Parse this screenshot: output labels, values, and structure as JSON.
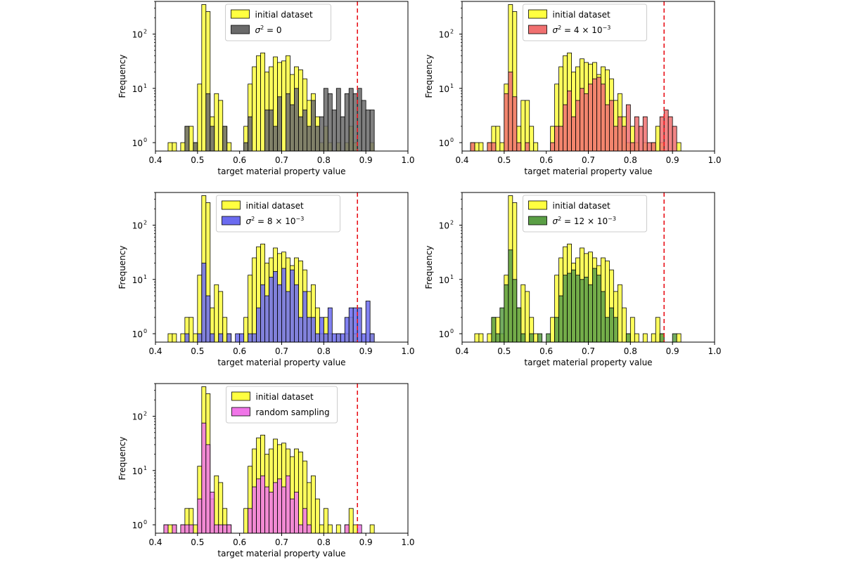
{
  "colors": {
    "initial": "#ffff40",
    "edge": "#000000",
    "threshold": "#e8141c"
  },
  "chart_data": [
    {
      "type": "histogram",
      "yscale": "log",
      "xlim": [
        0.4,
        1.0
      ],
      "ylim_display": [
        0.7,
        400
      ],
      "threshold_x": 0.88,
      "xlabel": "target material property value",
      "ylabel": "Frequency",
      "x_ticks": [
        "0.4",
        "0.5",
        "0.6",
        "0.7",
        "0.8",
        "0.9",
        "1.0"
      ],
      "y_ticks": [
        {
          "base": "10",
          "exp": "0"
        },
        {
          "base": "10",
          "exp": "1"
        },
        {
          "base": "10",
          "exp": "2"
        }
      ],
      "bin_width": 0.01,
      "bin_start": 0.42,
      "legend": [
        {
          "label": "initial dataset",
          "color": "#ffff40"
        },
        {
          "label": "σ² = 0",
          "sigma": "σ",
          "sup": "2",
          "rest": " = 0",
          "color": "#6a6a6a"
        }
      ],
      "series": [
        {
          "name": "initial dataset",
          "color": "#ffff40",
          "values": [
            0,
            1,
            1,
            0,
            1,
            2,
            2,
            1,
            12,
            350,
            260,
            3,
            8,
            6,
            2,
            1,
            0,
            0,
            0,
            2,
            12,
            25,
            40,
            45,
            20,
            25,
            38,
            30,
            32,
            40,
            18,
            25,
            22,
            15,
            6,
            8,
            3,
            1,
            2,
            1,
            0,
            1,
            0,
            1,
            2,
            1,
            0,
            0,
            0,
            1
          ]
        },
        {
          "name": "σ² = 0",
          "color": "#6a6a6a",
          "values": [
            0,
            0,
            0,
            0,
            0,
            2,
            0,
            1,
            0,
            0,
            8,
            2,
            0,
            0,
            2,
            0,
            0,
            0,
            0,
            1,
            3,
            0,
            0,
            0,
            4,
            4,
            2,
            7,
            0,
            8,
            5,
            10,
            3,
            4,
            2,
            6,
            2,
            3,
            10,
            8,
            4,
            10,
            3,
            8,
            10,
            8,
            10,
            6,
            4,
            4
          ]
        }
      ]
    },
    {
      "type": "histogram",
      "yscale": "log",
      "xlim": [
        0.4,
        1.0
      ],
      "ylim_display": [
        0.7,
        400
      ],
      "threshold_x": 0.88,
      "xlabel": "target material property value",
      "ylabel": "Frequency",
      "x_ticks": [
        "0.4",
        "0.5",
        "0.6",
        "0.7",
        "0.8",
        "0.9",
        "1.0"
      ],
      "y_ticks": [
        {
          "base": "10",
          "exp": "0"
        },
        {
          "base": "10",
          "exp": "1"
        },
        {
          "base": "10",
          "exp": "2"
        }
      ],
      "bin_width": 0.01,
      "bin_start": 0.42,
      "legend": [
        {
          "label": "initial dataset",
          "color": "#ffff40"
        },
        {
          "label": "σ² = 4 × 10⁻³",
          "sigma": "σ",
          "sup": "2",
          "rest": " = 4 × 10",
          "sup2": "−3",
          "color": "#f07070"
        }
      ],
      "series": [
        {
          "name": "initial dataset",
          "color": "#ffff40",
          "values": [
            1,
            1,
            1,
            0,
            1,
            2,
            2,
            1,
            12,
            350,
            260,
            2,
            6,
            6,
            2,
            1,
            0,
            0,
            0,
            2,
            12,
            25,
            40,
            45,
            20,
            25,
            35,
            30,
            28,
            30,
            18,
            25,
            22,
            15,
            6,
            8,
            3,
            1,
            2,
            1,
            0,
            1,
            0,
            1,
            2,
            1,
            0,
            0,
            0,
            1
          ]
        },
        {
          "name": "σ² = 4 × 10⁻³",
          "color": "#f07070",
          "values": [
            1,
            0,
            0,
            0,
            1,
            1,
            0,
            0,
            8,
            20,
            7,
            1,
            0,
            1,
            0,
            0,
            0,
            0,
            0,
            1,
            2,
            2,
            5,
            9,
            3,
            6,
            10,
            8,
            12,
            15,
            16,
            12,
            5,
            6,
            2,
            3,
            2,
            5,
            1,
            3,
            2,
            3,
            1,
            1,
            0,
            3,
            4,
            3,
            2,
            0
          ]
        }
      ]
    },
    {
      "type": "histogram",
      "yscale": "log",
      "xlim": [
        0.4,
        1.0
      ],
      "ylim_display": [
        0.7,
        400
      ],
      "threshold_x": 0.88,
      "xlabel": "target material property value",
      "ylabel": "Frequency",
      "x_ticks": [
        "0.4",
        "0.5",
        "0.6",
        "0.7",
        "0.8",
        "0.9",
        "1.0"
      ],
      "y_ticks": [
        {
          "base": "10",
          "exp": "0"
        },
        {
          "base": "10",
          "exp": "1"
        },
        {
          "base": "10",
          "exp": "2"
        }
      ],
      "bin_width": 0.01,
      "bin_start": 0.42,
      "legend": [
        {
          "label": "initial dataset",
          "color": "#ffff40"
        },
        {
          "label": "σ² = 8 × 10⁻³",
          "sigma": "σ",
          "sup": "2",
          "rest": " = 8 × 10",
          "sup2": "−3",
          "color": "#6b6bf0"
        }
      ],
      "series": [
        {
          "name": "initial dataset",
          "color": "#ffff40",
          "values": [
            0,
            1,
            1,
            0,
            1,
            2,
            2,
            1,
            12,
            350,
            260,
            3,
            8,
            6,
            2,
            1,
            0,
            0,
            0,
            2,
            12,
            25,
            40,
            45,
            20,
            25,
            38,
            30,
            32,
            25,
            18,
            25,
            22,
            15,
            6,
            8,
            3,
            1,
            2,
            1,
            0,
            1,
            0,
            1,
            2,
            1,
            0,
            0,
            0,
            1
          ]
        },
        {
          "name": "σ² = 8 × 10⁻³",
          "color": "#6b6bf0",
          "values": [
            0,
            0,
            0,
            0,
            0,
            1,
            0,
            0,
            1,
            20,
            5,
            1,
            0,
            1,
            0,
            1,
            0,
            1,
            1,
            0,
            1,
            1,
            3,
            8,
            5,
            11,
            14,
            8,
            16,
            6,
            15,
            8,
            2,
            6,
            2,
            2,
            1,
            2,
            1,
            3,
            1,
            1,
            1,
            2,
            3,
            3,
            3,
            1,
            4,
            1
          ]
        }
      ]
    },
    {
      "type": "histogram",
      "yscale": "log",
      "xlim": [
        0.4,
        1.0
      ],
      "ylim_display": [
        0.7,
        400
      ],
      "threshold_x": 0.88,
      "xlabel": "target material property value",
      "ylabel": "Frequency",
      "x_ticks": [
        "0.4",
        "0.5",
        "0.6",
        "0.7",
        "0.8",
        "0.9",
        "1.0"
      ],
      "y_ticks": [
        {
          "base": "10",
          "exp": "0"
        },
        {
          "base": "10",
          "exp": "1"
        },
        {
          "base": "10",
          "exp": "2"
        }
      ],
      "bin_width": 0.01,
      "bin_start": 0.42,
      "legend": [
        {
          "label": "initial dataset",
          "color": "#ffff40"
        },
        {
          "label": "σ² = 12 × 10⁻³",
          "sigma": "σ",
          "sup": "2",
          "rest": " = 12 × 10",
          "sup2": "−3",
          "color": "#5a9e45"
        }
      ],
      "series": [
        {
          "name": "initial dataset",
          "color": "#ffff40",
          "values": [
            0,
            1,
            1,
            0,
            1,
            2,
            2,
            1,
            12,
            350,
            260,
            3,
            8,
            6,
            2,
            1,
            0,
            0,
            0,
            2,
            12,
            25,
            40,
            45,
            20,
            25,
            38,
            30,
            32,
            25,
            18,
            25,
            22,
            15,
            6,
            8,
            3,
            1,
            2,
            1,
            0,
            1,
            0,
            1,
            2,
            1,
            0,
            0,
            0,
            1
          ]
        },
        {
          "name": "σ² = 12 × 10⁻³",
          "color": "#5a9e45",
          "values": [
            0,
            0,
            0,
            0,
            0,
            2,
            1,
            3,
            8,
            35,
            10,
            3,
            1,
            0,
            1,
            0,
            1,
            0,
            1,
            0,
            2,
            5,
            12,
            13,
            15,
            12,
            10,
            11,
            8,
            16,
            12,
            6,
            2,
            3,
            2,
            0,
            0,
            1,
            0,
            0,
            0,
            0,
            0,
            0,
            0,
            1,
            0,
            0,
            1,
            0
          ]
        }
      ]
    },
    {
      "type": "histogram",
      "yscale": "log",
      "xlim": [
        0.4,
        1.0
      ],
      "ylim_display": [
        0.7,
        400
      ],
      "threshold_x": 0.88,
      "xlabel": "target material property value",
      "ylabel": "Frequency",
      "x_ticks": [
        "0.4",
        "0.5",
        "0.6",
        "0.7",
        "0.8",
        "0.9",
        "1.0"
      ],
      "y_ticks": [
        {
          "base": "10",
          "exp": "0"
        },
        {
          "base": "10",
          "exp": "1"
        },
        {
          "base": "10",
          "exp": "2"
        }
      ],
      "bin_width": 0.01,
      "bin_start": 0.42,
      "legend": [
        {
          "label": "initial dataset",
          "color": "#ffff40"
        },
        {
          "label": "random sampling",
          "color": "#f075e8"
        }
      ],
      "series": [
        {
          "name": "initial dataset",
          "color": "#ffff40",
          "values": [
            1,
            1,
            1,
            0,
            1,
            2,
            2,
            1,
            12,
            350,
            260,
            3,
            8,
            6,
            2,
            1,
            0,
            0,
            0,
            2,
            12,
            25,
            40,
            45,
            20,
            25,
            38,
            30,
            32,
            25,
            18,
            25,
            22,
            15,
            6,
            8,
            3,
            1,
            2,
            1,
            0,
            1,
            0,
            1,
            2,
            1,
            0,
            0,
            0,
            1
          ]
        },
        {
          "name": "random sampling",
          "color": "#f075e8",
          "values": [
            1,
            0,
            1,
            0,
            1,
            1,
            1,
            0,
            3,
            75,
            30,
            4,
            1,
            1,
            1,
            1,
            0,
            0,
            0,
            0,
            2,
            5,
            7,
            8,
            5,
            4,
            6,
            7,
            5,
            8,
            3,
            4,
            1,
            2,
            1,
            0,
            0,
            0,
            0,
            0,
            0,
            0,
            0,
            1,
            0,
            0,
            1,
            0,
            0,
            0
          ]
        }
      ]
    }
  ]
}
